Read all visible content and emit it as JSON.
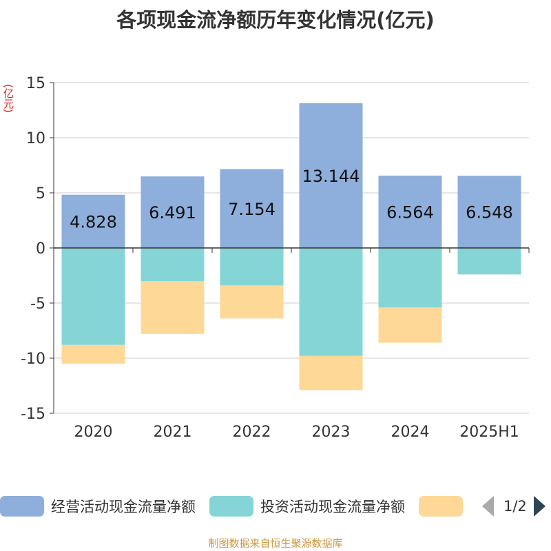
{
  "title": "各项现金流净额历年变化情况(亿元)",
  "y_unit": "(亿元)",
  "colors": {
    "operating": "#8eaedb",
    "investing": "#85d5d6",
    "financing": "#fed897",
    "axis": "#333333",
    "grid": "#cccccc"
  },
  "chart_data": {
    "type": "bar",
    "stacked": true,
    "title": "各项现金流净额历年变化情况(亿元)",
    "ylabel": "(亿元)",
    "ylim": [
      -15,
      15
    ],
    "yticks": [
      15,
      10,
      5,
      0,
      -5,
      -10,
      -15
    ],
    "categories": [
      "2020",
      "2021",
      "2022",
      "2023",
      "2024",
      "2025H1"
    ],
    "series": [
      {
        "name": "经营活动现金流量净额",
        "color": "#8eaedb",
        "values": [
          4.828,
          6.491,
          7.154,
          13.144,
          6.564,
          6.548
        ],
        "labels": [
          "4.828",
          "6.491",
          "7.154",
          "13.144",
          "6.564",
          "6.548"
        ]
      },
      {
        "name": "投资活动现金流量净额",
        "color": "#85d5d6",
        "values": [
          -8.8,
          -3.0,
          -3.4,
          -9.8,
          -5.4,
          -2.4
        ]
      },
      {
        "name": "",
        "color": "#fed897",
        "values": [
          -1.7,
          -4.8,
          -3.0,
          -3.1,
          -3.2,
          0
        ]
      }
    ]
  },
  "legend": {
    "items": [
      {
        "label": "经营活动现金流量净额"
      },
      {
        "label": "投资活动现金流量净额"
      },
      {
        "label": ""
      }
    ],
    "page": "1/2"
  },
  "footer": "制图数据来自恒生聚源数据库"
}
